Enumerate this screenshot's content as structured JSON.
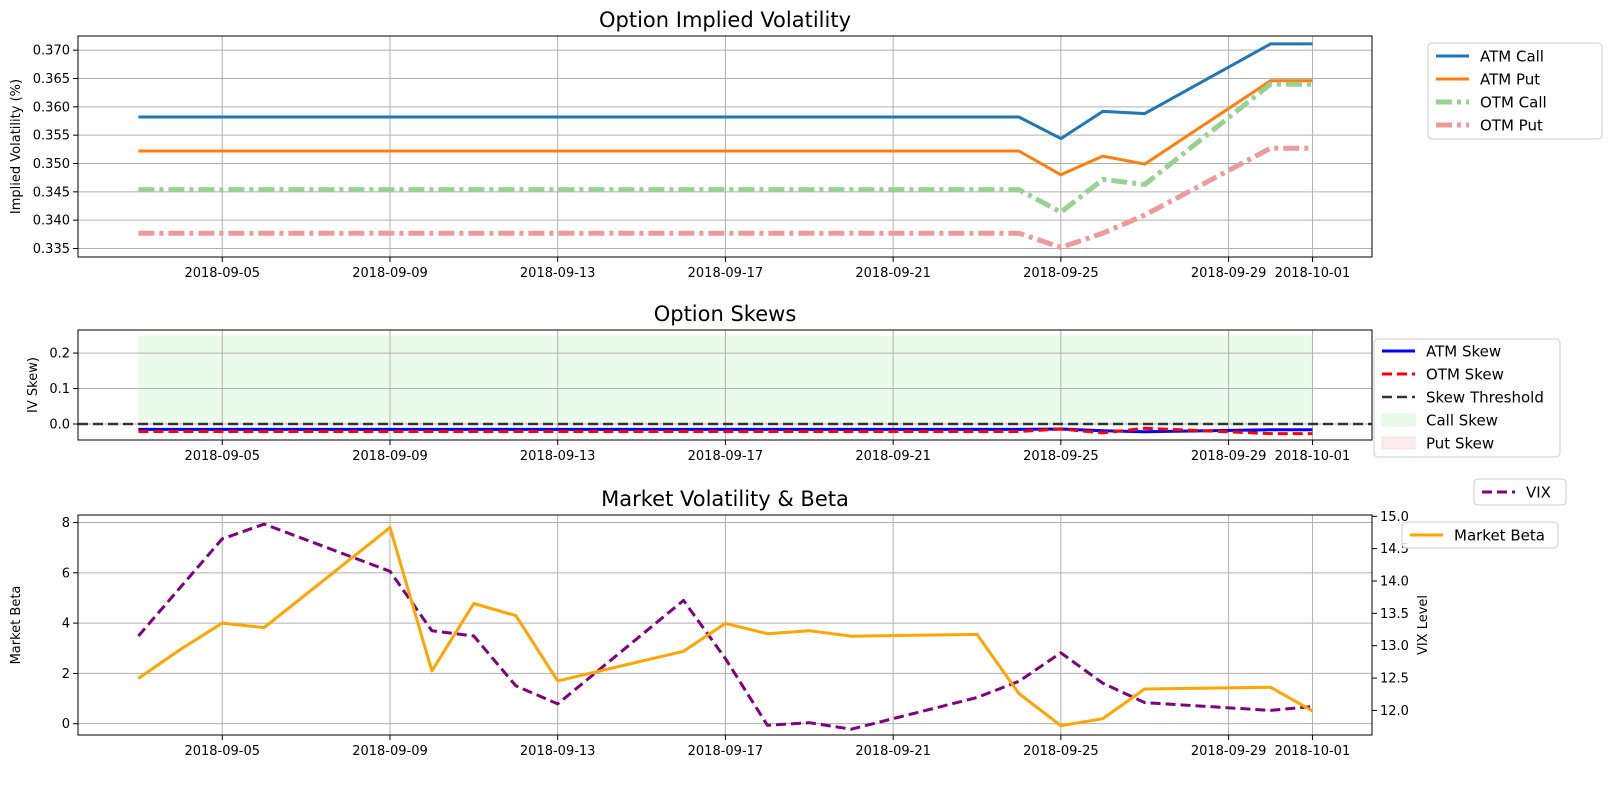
{
  "chart_data": [
    {
      "id": "iv",
      "type": "line",
      "title": "Option Implied Volatility",
      "ylabel": "Implied Volatility (%)",
      "xlabel": "",
      "ylim": [
        0.3335,
        0.3725
      ],
      "yticks": [
        "0.335",
        "0.340",
        "0.345",
        "0.350",
        "0.355",
        "0.360",
        "0.365",
        "0.370"
      ],
      "xticks": [
        "2018-09-05",
        "2018-09-09",
        "2018-09-13",
        "2018-09-17",
        "2018-09-21",
        "2018-09-25",
        "2018-09-29",
        "2018-10-01"
      ],
      "grid": true,
      "legend_position": "outside-top-right",
      "series": [
        {
          "name": "ATM Call",
          "color": "#1f77b4",
          "style": "solid",
          "x": [
            "2018-09-03",
            "2018-09-24",
            "2018-09-25",
            "2018-09-26",
            "2018-09-27",
            "2018-09-30",
            "2018-10-01"
          ],
          "y": [
            0.3582,
            0.3582,
            0.3544,
            0.3592,
            0.3588,
            0.3711,
            0.3711
          ]
        },
        {
          "name": "ATM Put",
          "color": "#ff7f0e",
          "style": "solid",
          "x": [
            "2018-09-03",
            "2018-09-24",
            "2018-09-25",
            "2018-09-26",
            "2018-09-27",
            "2018-09-30",
            "2018-10-01"
          ],
          "y": [
            0.3522,
            0.3522,
            0.348,
            0.3513,
            0.3499,
            0.3646,
            0.3646
          ]
        },
        {
          "name": "OTM Call",
          "color": "#98d293",
          "style": "dashdot",
          "x": [
            "2018-09-03",
            "2018-09-24",
            "2018-09-25",
            "2018-09-26",
            "2018-09-27",
            "2018-09-30",
            "2018-10-01"
          ],
          "y": [
            0.3454,
            0.3454,
            0.3414,
            0.3472,
            0.3463,
            0.364,
            0.364
          ]
        },
        {
          "name": "OTM Put",
          "color": "#ee9a9a",
          "style": "dashdot",
          "x": [
            "2018-09-03",
            "2018-09-24",
            "2018-09-25",
            "2018-09-26",
            "2018-09-27",
            "2018-09-30",
            "2018-10-01"
          ],
          "y": [
            0.3377,
            0.3377,
            0.3352,
            0.3377,
            0.3409,
            0.3527,
            0.3527
          ]
        }
      ]
    },
    {
      "id": "skew",
      "type": "line",
      "title": "Option Skews",
      "ylabel": "IV Skew)",
      "xlabel": "",
      "ylim": [
        -0.045,
        0.265
      ],
      "yticks": [
        "0.0",
        "0.1",
        "0.2"
      ],
      "xticks": [
        "2018-09-05",
        "2018-09-09",
        "2018-09-13",
        "2018-09-17",
        "2018-09-21",
        "2018-09-25",
        "2018-09-29",
        "2018-10-01"
      ],
      "grid": true,
      "legend_position": "outside-right",
      "series": [
        {
          "name": "ATM Skew",
          "color": "#0000ff",
          "style": "solid",
          "x": [
            "2018-09-03",
            "2018-09-24",
            "2018-09-25",
            "2018-09-26",
            "2018-09-27",
            "2018-09-30",
            "2018-10-01"
          ],
          "y": [
            -0.015,
            -0.015,
            -0.014,
            -0.019,
            -0.022,
            -0.016,
            -0.016
          ]
        },
        {
          "name": "OTM Skew",
          "color": "#ff0000",
          "style": "dashed",
          "x": [
            "2018-09-03",
            "2018-09-24",
            "2018-09-25",
            "2018-09-26",
            "2018-09-27",
            "2018-09-30",
            "2018-10-01"
          ],
          "y": [
            -0.021,
            -0.021,
            -0.014,
            -0.025,
            -0.012,
            -0.027,
            -0.027
          ]
        },
        {
          "name": "Skew Threshold",
          "color": "#333333",
          "style": "dashed",
          "y_constant": 0.0
        }
      ],
      "fills": [
        {
          "name": "Call Skew",
          "color": "#ccf5cc",
          "x_start": "2018-09-03",
          "x_end": "2018-10-01",
          "y_from": 0.0,
          "y_to": 0.25
        },
        {
          "name": "Put Skew",
          "color": "#f8d0d0"
        }
      ]
    },
    {
      "id": "market",
      "type": "line",
      "title": "Market Volatility & Beta",
      "ylabel": "Market Beta",
      "ylabel_right": "VIX Level",
      "xlabel": "",
      "ylim": [
        -0.45,
        8.3
      ],
      "ylim_right": [
        11.62,
        15.02
      ],
      "yticks": [
        "0",
        "2",
        "4",
        "6",
        "8"
      ],
      "yticks_right": [
        "12.0",
        "12.5",
        "13.0",
        "13.5",
        "14.0",
        "14.5",
        "15.0"
      ],
      "xticks": [
        "2018-09-05",
        "2018-09-09",
        "2018-09-13",
        "2018-09-17",
        "2018-09-21",
        "2018-09-25",
        "2018-09-29",
        "2018-10-01"
      ],
      "grid": true,
      "legend_position": "outside-right",
      "series": [
        {
          "name": "VIX",
          "axis": "right",
          "color": "#800080",
          "style": "dashed",
          "x": [
            "2018-09-03",
            "2018-09-05",
            "2018-09-06",
            "2018-09-09",
            "2018-09-10",
            "2018-09-11",
            "2018-09-12",
            "2018-09-13",
            "2018-09-16",
            "2018-09-17",
            "2018-09-18",
            "2018-09-19",
            "2018-09-20",
            "2018-09-23",
            "2018-09-24",
            "2018-09-25",
            "2018-09-26",
            "2018-09-27",
            "2018-09-30",
            "2018-10-01"
          ],
          "y": [
            13.15,
            14.65,
            14.88,
            14.15,
            13.23,
            13.15,
            12.38,
            12.1,
            13.7,
            12.8,
            11.77,
            11.81,
            11.71,
            12.2,
            12.45,
            12.89,
            12.42,
            12.12,
            12.0,
            12.06
          ]
        },
        {
          "name": "Market Beta",
          "axis": "left",
          "color": "#ffa500",
          "style": "solid",
          "x": [
            "2018-09-03",
            "2018-09-04",
            "2018-09-05",
            "2018-09-06",
            "2018-09-09",
            "2018-09-10",
            "2018-09-11",
            "2018-09-12",
            "2018-09-13",
            "2018-09-16",
            "2018-09-17",
            "2018-09-18",
            "2018-09-19",
            "2018-09-20",
            "2018-09-23",
            "2018-09-24",
            "2018-09-25",
            "2018-09-26",
            "2018-09-27",
            "2018-09-30",
            "2018-10-01"
          ],
          "y": [
            1.8,
            2.95,
            4.0,
            3.82,
            7.8,
            2.1,
            4.78,
            4.3,
            1.7,
            2.88,
            3.99,
            3.58,
            3.7,
            3.48,
            3.55,
            1.2,
            -0.08,
            0.2,
            1.38,
            1.45,
            0.5
          ]
        }
      ]
    }
  ]
}
